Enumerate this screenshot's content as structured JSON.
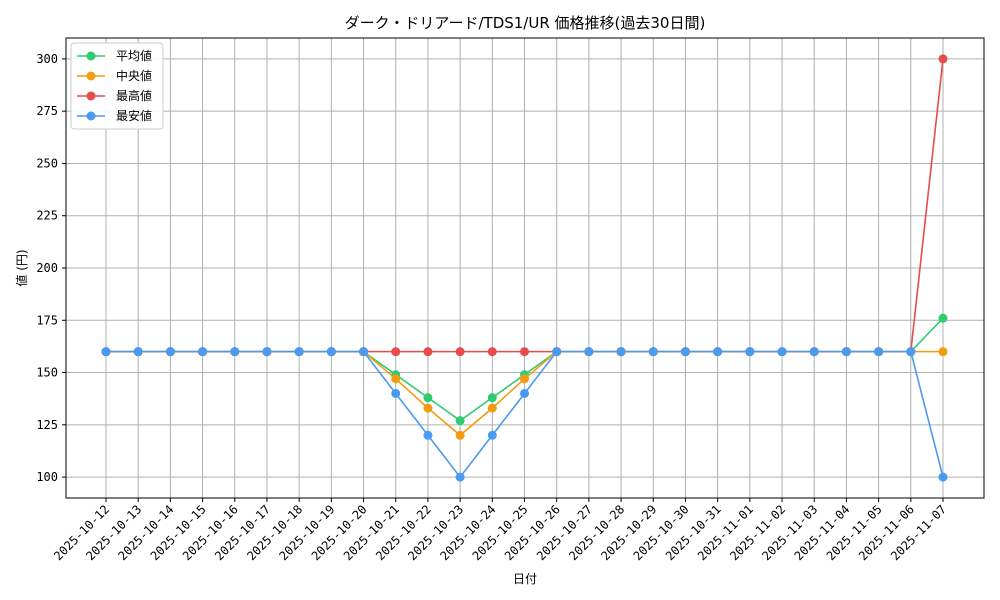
{
  "chart_data": {
    "type": "line",
    "title": "ダーク・ドリアード/TDS1/UR 価格推移(過去30日間)",
    "xlabel": "日付",
    "ylabel": "値 (円)",
    "ylim": [
      90,
      310
    ],
    "yticks": [
      100,
      125,
      150,
      175,
      200,
      225,
      250,
      275,
      300
    ],
    "grid": true,
    "legend_position": "top-left",
    "categories": [
      "2025-10-12",
      "2025-10-13",
      "2025-10-14",
      "2025-10-15",
      "2025-10-16",
      "2025-10-17",
      "2025-10-18",
      "2025-10-19",
      "2025-10-20",
      "2025-10-21",
      "2025-10-22",
      "2025-10-23",
      "2025-10-24",
      "2025-10-25",
      "2025-10-26",
      "2025-10-27",
      "2025-10-28",
      "2025-10-29",
      "2025-10-30",
      "2025-10-31",
      "2025-11-01",
      "2025-11-02",
      "2025-11-03",
      "2025-11-04",
      "2025-11-05",
      "2025-11-06",
      "2025-11-07"
    ],
    "series": [
      {
        "name": "平均値",
        "color": "#2ecc71",
        "values": [
          160,
          160,
          160,
          160,
          160,
          160,
          160,
          160,
          160,
          149,
          138,
          127,
          138,
          149,
          160,
          160,
          160,
          160,
          160,
          160,
          160,
          160,
          160,
          160,
          160,
          160,
          176
        ]
      },
      {
        "name": "中央値",
        "color": "#f39c12",
        "values": [
          160,
          160,
          160,
          160,
          160,
          160,
          160,
          160,
          160,
          147,
          133,
          120,
          133,
          147,
          160,
          160,
          160,
          160,
          160,
          160,
          160,
          160,
          160,
          160,
          160,
          160,
          160
        ]
      },
      {
        "name": "最高値",
        "color": "#e74c4c",
        "values": [
          160,
          160,
          160,
          160,
          160,
          160,
          160,
          160,
          160,
          160,
          160,
          160,
          160,
          160,
          160,
          160,
          160,
          160,
          160,
          160,
          160,
          160,
          160,
          160,
          160,
          160,
          300
        ]
      },
      {
        "name": "最安値",
        "color": "#4a9af0",
        "values": [
          160,
          160,
          160,
          160,
          160,
          160,
          160,
          160,
          160,
          140,
          120,
          100,
          120,
          140,
          160,
          160,
          160,
          160,
          160,
          160,
          160,
          160,
          160,
          160,
          160,
          160,
          100
        ]
      }
    ]
  }
}
